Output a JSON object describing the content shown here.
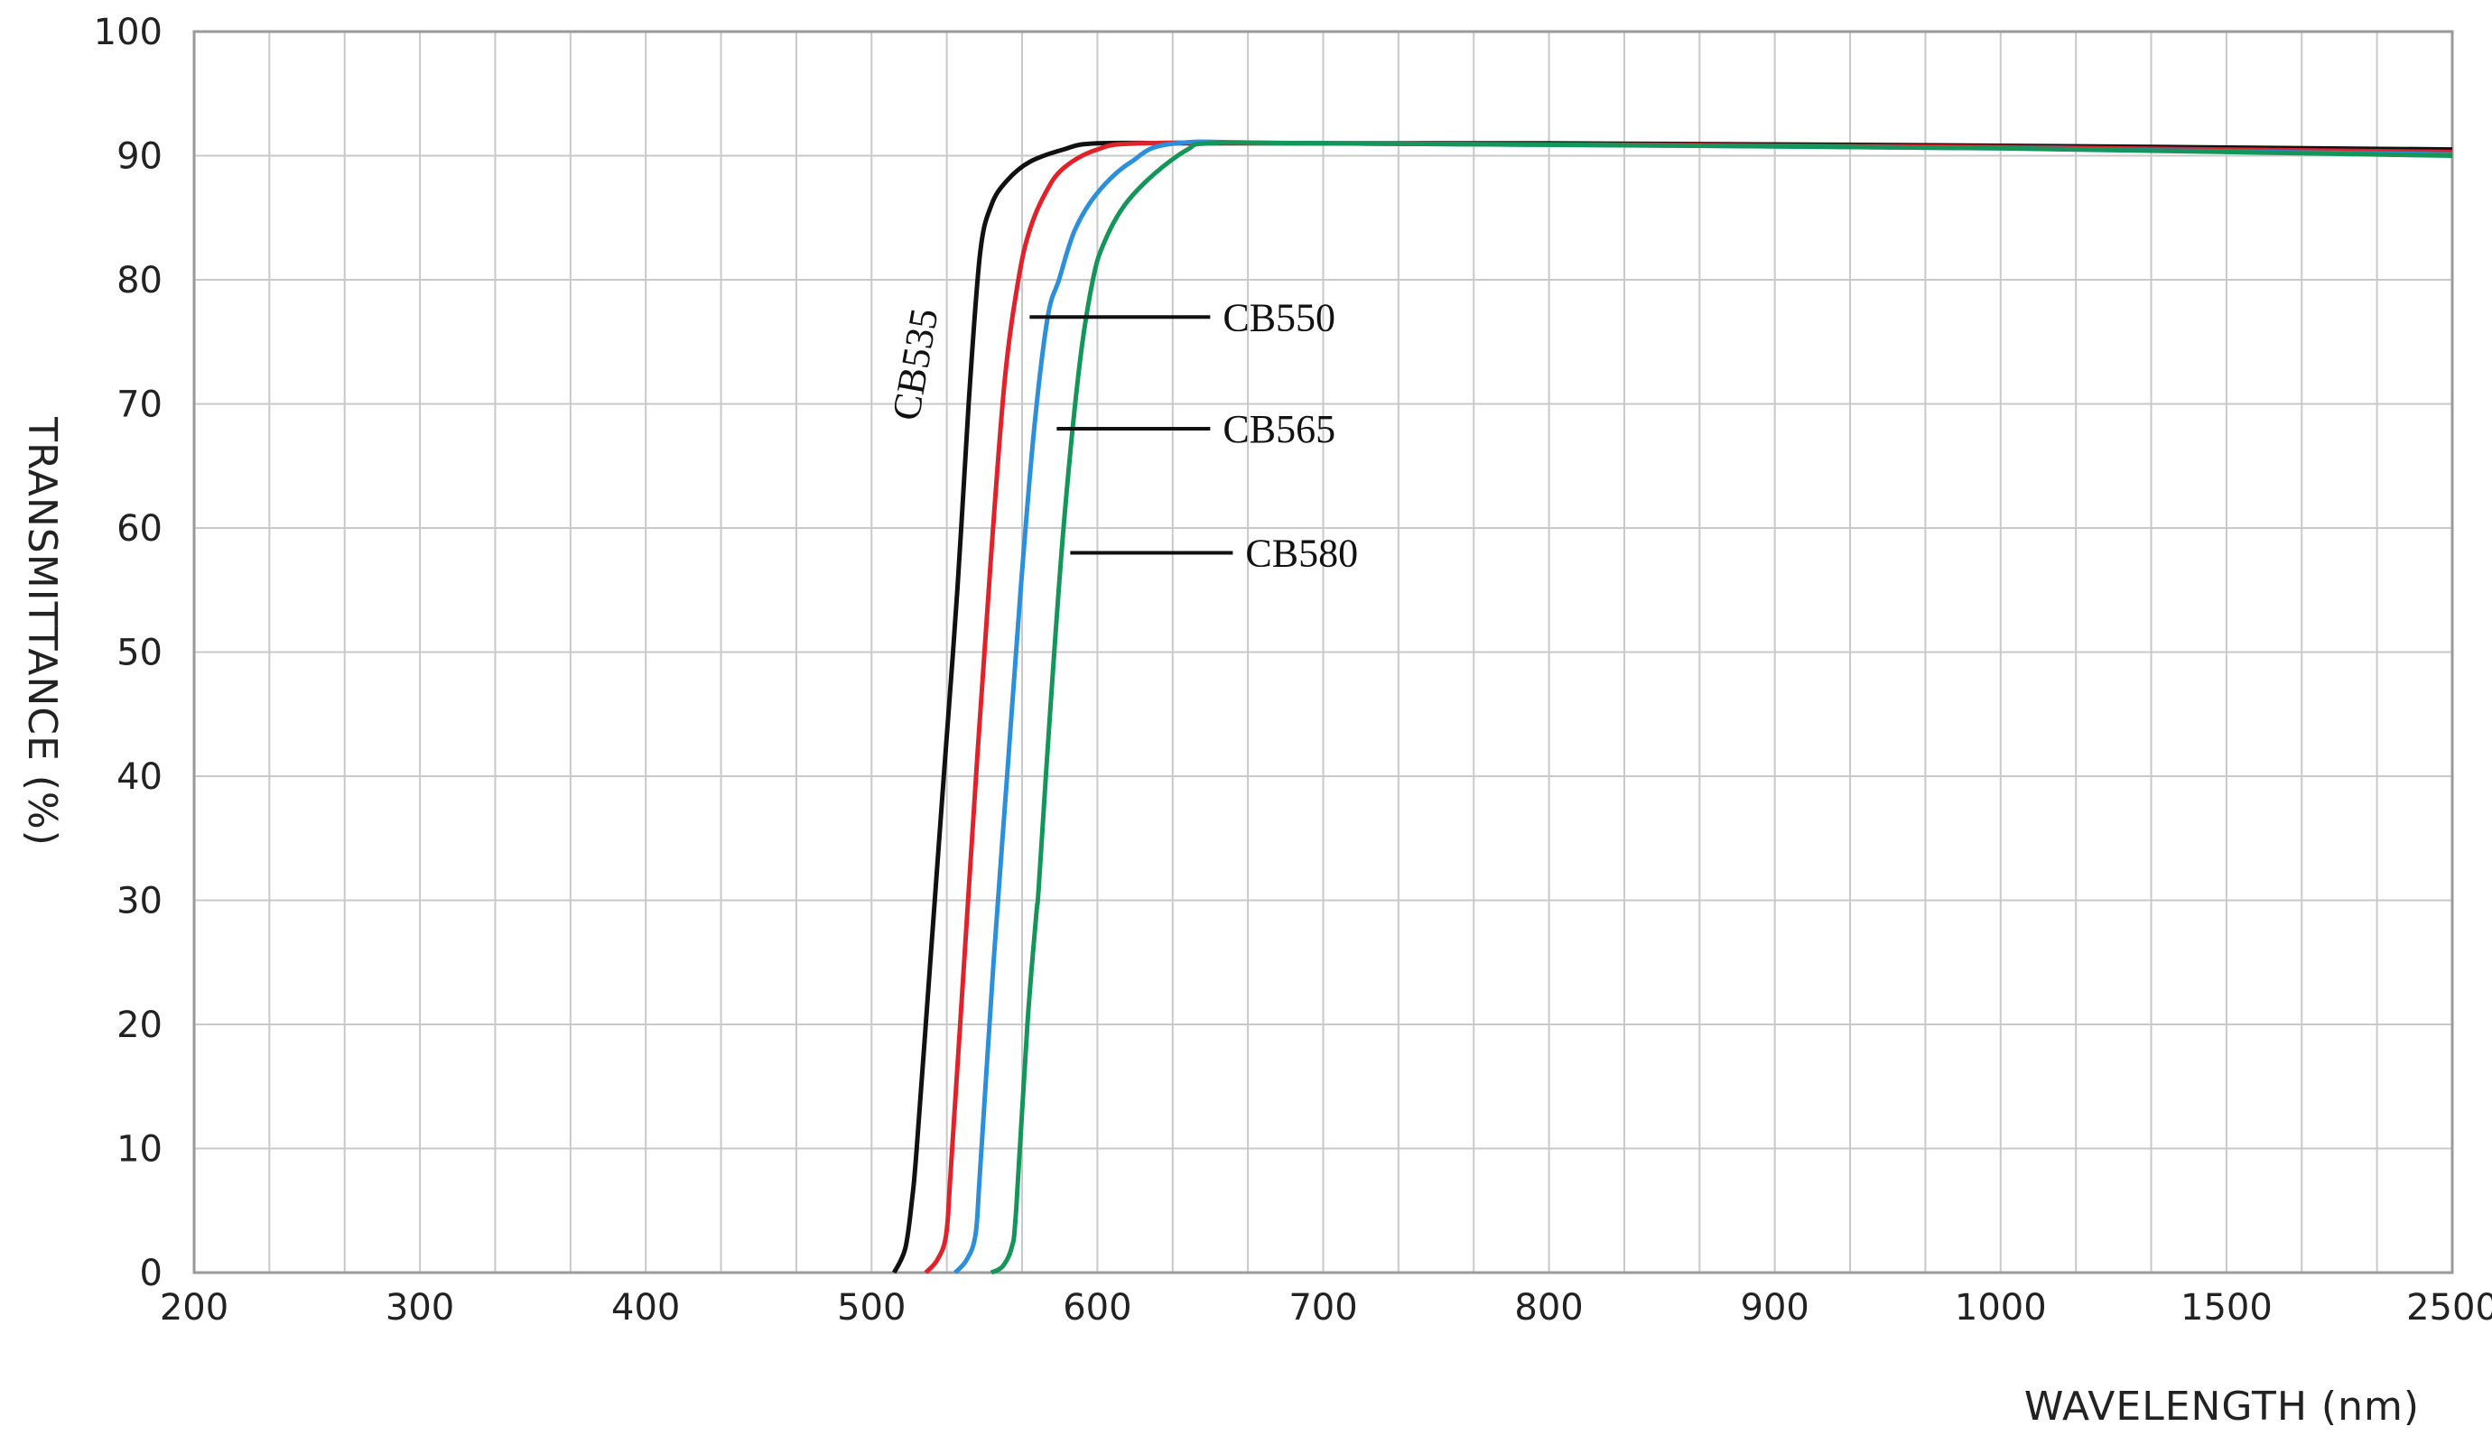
{
  "chart_data": {
    "type": "line",
    "title": "",
    "xlabel": "WAVELENGTH (nm)",
    "ylabel": "TRANSMITTANCE (%)",
    "x_ticks": [
      "200",
      "300",
      "400",
      "500",
      "600",
      "700",
      "800",
      "900",
      "1000",
      "1500",
      "2500"
    ],
    "y_ticks": [
      "0",
      "10",
      "20",
      "30",
      "40",
      "50",
      "60",
      "70",
      "80",
      "90",
      "100"
    ],
    "ylim": [
      0,
      100
    ],
    "grid": true,
    "minor_x_grid": true,
    "series": [
      {
        "name": "CB535",
        "color": "#111111",
        "points": [
          [
            510,
            0
          ],
          [
            515,
            2
          ],
          [
            518,
            6
          ],
          [
            520,
            10
          ],
          [
            526,
            25
          ],
          [
            532,
            40
          ],
          [
            538,
            55
          ],
          [
            543,
            70
          ],
          [
            548,
            82
          ],
          [
            553,
            86
          ],
          [
            560,
            88
          ],
          [
            570,
            89.5
          ],
          [
            585,
            90.5
          ],
          [
            600,
            91
          ],
          [
            650,
            91
          ],
          [
            800,
            91
          ],
          [
            1000,
            90.8
          ],
          [
            2500,
            90.5
          ]
        ]
      },
      {
        "name": "CB550",
        "color": "#e0222b",
        "points": [
          [
            524,
            0
          ],
          [
            529,
            1
          ],
          [
            533,
            3
          ],
          [
            535,
            8
          ],
          [
            541,
            25
          ],
          [
            547,
            42
          ],
          [
            553,
            58
          ],
          [
            559,
            72
          ],
          [
            565,
            80
          ],
          [
            570,
            84
          ],
          [
            577,
            87
          ],
          [
            585,
            89
          ],
          [
            600,
            90.5
          ],
          [
            620,
            91
          ],
          [
            700,
            91
          ],
          [
            1000,
            90.7
          ],
          [
            2500,
            90.3
          ]
        ]
      },
      {
        "name": "CB565",
        "color": "#2b8fd9",
        "points": [
          [
            537,
            0
          ],
          [
            542,
            1
          ],
          [
            546,
            3
          ],
          [
            548,
            8
          ],
          [
            554,
            25
          ],
          [
            560,
            40
          ],
          [
            566,
            55
          ],
          [
            572,
            68
          ],
          [
            578,
            77
          ],
          [
            583,
            80
          ],
          [
            590,
            84
          ],
          [
            600,
            87
          ],
          [
            615,
            89.5
          ],
          [
            635,
            91
          ],
          [
            700,
            91
          ],
          [
            1000,
            90.6
          ],
          [
            2500,
            90.1
          ]
        ]
      },
      {
        "name": "CB580",
        "color": "#14955a",
        "points": [
          [
            553,
            0
          ],
          [
            558,
            0.5
          ],
          [
            562,
            2
          ],
          [
            564,
            5
          ],
          [
            569,
            20
          ],
          [
            573,
            29
          ],
          [
            574,
            31
          ],
          [
            579,
            45
          ],
          [
            585,
            60
          ],
          [
            592,
            73
          ],
          [
            598,
            80
          ],
          [
            603,
            83
          ],
          [
            612,
            86
          ],
          [
            625,
            88.5
          ],
          [
            640,
            90.5
          ],
          [
            650,
            91
          ],
          [
            700,
            91
          ],
          [
            1000,
            90.6
          ],
          [
            2500,
            90
          ]
        ]
      }
    ],
    "annotations": [
      {
        "text": "CB535",
        "series": "CB535"
      },
      {
        "text": "CB550",
        "series": "CB550",
        "leader_from": [
          570,
          77
        ]
      },
      {
        "text": "CB565",
        "series": "CB565",
        "leader_from": [
          582,
          68
        ]
      },
      {
        "text": "CB580",
        "series": "CB580",
        "leader_from": [
          588,
          58
        ]
      }
    ]
  }
}
